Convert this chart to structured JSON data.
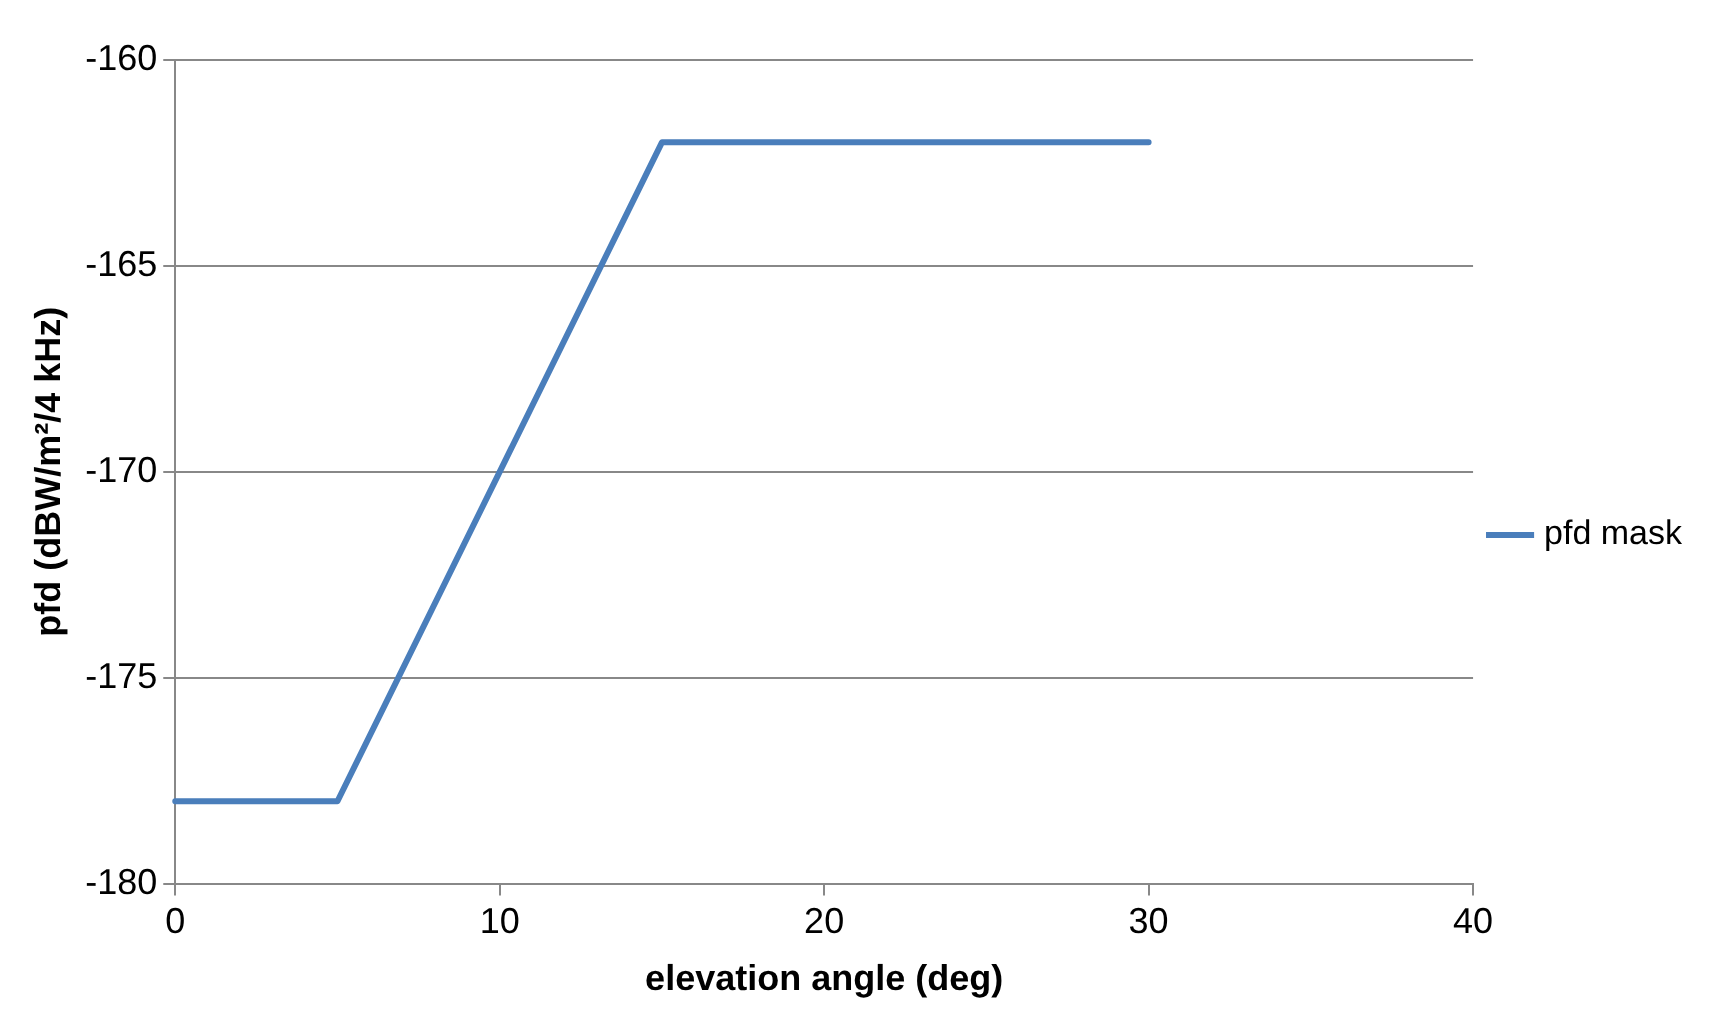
{
  "chart_data": {
    "type": "line",
    "xlabel": "elevation angle (deg)",
    "ylabel": "pfd (dBW/m²/4 kHz)",
    "x": [
      0,
      5,
      15,
      30
    ],
    "series": [
      {
        "name": "pfd mask",
        "color": "#4a7ebb",
        "values": [
          -178,
          -178,
          -162,
          -162
        ]
      }
    ],
    "xlim": [
      0,
      40
    ],
    "xticks": [
      0,
      10,
      20,
      30,
      40
    ],
    "ylim": [
      -180,
      -160
    ],
    "yticks": [
      -180,
      -175,
      -170,
      -165,
      -160
    ],
    "grid": "y",
    "legend": "right",
    "marker": "none",
    "line_style": "solid"
  }
}
